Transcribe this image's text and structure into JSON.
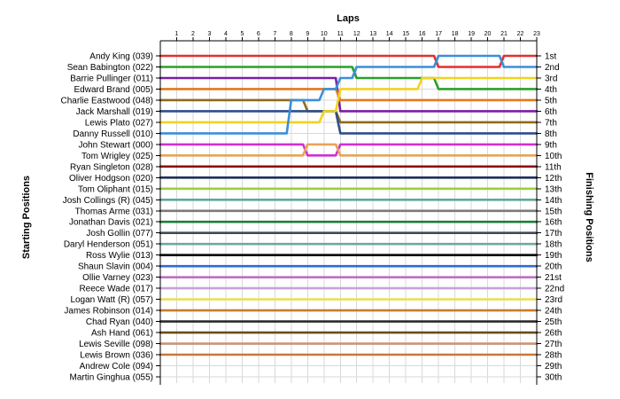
{
  "chart_data": {
    "type": "line",
    "title": "",
    "xlabel": "Laps",
    "ylabel_left": "Starting Positions",
    "ylabel_right": "Finishing Positions",
    "x": [
      0,
      1,
      2,
      3,
      4,
      5,
      6,
      7,
      8,
      9,
      10,
      11,
      12,
      13,
      14,
      15,
      16,
      17,
      18,
      19,
      20,
      21,
      22,
      23
    ],
    "x_tick_labels": [
      "1",
      "2",
      "3",
      "4",
      "5",
      "6",
      "7",
      "8",
      "9",
      "10",
      "11",
      "12",
      "13",
      "14",
      "15",
      "16",
      "17",
      "18",
      "19",
      "20",
      "21",
      "22",
      "23"
    ],
    "ylim": [
      1,
      30
    ],
    "y_inverted": true,
    "grid": true,
    "start_labels": [
      "Andy King (039)",
      "Sean Babington (022)",
      "Barrie Pullinger (011)",
      "Edward Brand (005)",
      "Charlie Eastwood (048)",
      "Jack Marshall (019)",
      "Lewis Plato (027)",
      "Danny Russell (010)",
      "John Stewart (000)",
      "Tom Wrigley (025)",
      "Ryan Singleton (028)",
      "Oliver Hodgson (020)",
      "Tom Oliphant (015)",
      "Josh Collings (R) (045)",
      "Thomas Arme (031)",
      "Jonathan Davis (021)",
      "Josh Gollin (077)",
      "Daryl Henderson (051)",
      "Ross Wylie (013)",
      "Shaun Slavin (004)",
      "Ollie Varney (023)",
      "Reece Wade (017)",
      "Logan Watt (R) (057)",
      "James Robinson (014)",
      "Chad Ryan (040)",
      "Ash Hand (061)",
      "Lewis Seville (098)",
      "Lewis Brown (036)",
      "Andrew Cole (094)",
      "Martin Ginghua (055)"
    ],
    "finish_labels": [
      "1st",
      "2nd",
      "3rd",
      "4th",
      "5th",
      "6th",
      "7th",
      "8th",
      "9th",
      "10th",
      "11th",
      "12th",
      "13th",
      "14th",
      "15th",
      "16th",
      "17th",
      "18th",
      "19th",
      "20th",
      "21st",
      "22nd",
      "23rd",
      "24th",
      "25th",
      "26th",
      "27th",
      "28th",
      "29th",
      "30th"
    ],
    "series": [
      {
        "color": "#e03030",
        "values": [
          1,
          1,
          1,
          1,
          1,
          1,
          1,
          1,
          1,
          1,
          1,
          1,
          1,
          1,
          1,
          1,
          1,
          2,
          2,
          2,
          2,
          1,
          1,
          1
        ]
      },
      {
        "color": "#2aa02a",
        "values": [
          2,
          2,
          2,
          2,
          2,
          2,
          2,
          2,
          2,
          2,
          2,
          2,
          3,
          3,
          3,
          3,
          3,
          4,
          4,
          4,
          4,
          4,
          4,
          4
        ]
      },
      {
        "color": "#7a1fa2",
        "values": [
          3,
          3,
          3,
          3,
          3,
          3,
          3,
          3,
          3,
          3,
          3,
          6,
          6,
          6,
          6,
          6,
          6,
          6,
          6,
          6,
          6,
          6,
          6,
          6
        ]
      },
      {
        "color": "#e07a1f",
        "values": [
          4,
          4,
          4,
          4,
          4,
          4,
          4,
          4,
          4,
          4,
          4,
          5,
          5,
          5,
          5,
          5,
          5,
          5,
          5,
          5,
          5,
          5,
          5,
          5
        ]
      },
      {
        "color": "#8e6b1a",
        "values": [
          5,
          5,
          5,
          5,
          5,
          5,
          5,
          5,
          5,
          6,
          6,
          7,
          7,
          7,
          7,
          7,
          7,
          7,
          7,
          7,
          7,
          7,
          7,
          7
        ]
      },
      {
        "color": "#2d4f8c",
        "values": [
          6,
          6,
          6,
          6,
          6,
          6,
          6,
          6,
          6,
          6,
          6,
          8,
          8,
          8,
          8,
          8,
          8,
          8,
          8,
          8,
          8,
          8,
          8,
          8
        ]
      },
      {
        "color": "#f2d21f",
        "values": [
          7,
          7,
          7,
          7,
          7,
          7,
          7,
          7,
          7,
          7,
          6,
          4,
          4,
          4,
          4,
          4,
          3,
          3,
          3,
          3,
          3,
          3,
          3,
          3
        ]
      },
      {
        "color": "#3b8fd9",
        "values": [
          8,
          8,
          8,
          8,
          8,
          8,
          8,
          8,
          5,
          5,
          4,
          3,
          2,
          2,
          2,
          2,
          2,
          1,
          1,
          1,
          1,
          2,
          2,
          2
        ]
      },
      {
        "color": "#d030d0",
        "values": [
          9,
          9,
          9,
          9,
          9,
          9,
          9,
          9,
          9,
          10,
          10,
          9,
          9,
          9,
          9,
          9,
          9,
          9,
          9,
          9,
          9,
          9,
          9,
          9
        ]
      },
      {
        "color": "#e6a35a",
        "values": [
          10,
          10,
          10,
          10,
          10,
          10,
          10,
          10,
          10,
          9,
          9,
          10,
          10,
          10,
          10,
          10,
          10,
          10,
          10,
          10,
          10,
          10,
          10,
          10
        ]
      },
      {
        "color": "#8b1010",
        "values": [
          11,
          11,
          11,
          11,
          11,
          11,
          11,
          11,
          11,
          11,
          11,
          11,
          11,
          11,
          11,
          11,
          11,
          11,
          11,
          11,
          11,
          11,
          11,
          11
        ]
      },
      {
        "color": "#1f2f5c",
        "values": [
          12,
          12,
          12,
          12,
          12,
          12,
          12,
          12,
          12,
          12,
          12,
          12,
          12,
          12,
          12,
          12,
          12,
          12,
          12,
          12,
          12,
          12,
          12,
          12
        ]
      },
      {
        "color": "#98d23a",
        "values": [
          13,
          13,
          13,
          13,
          13,
          13,
          13,
          13,
          13,
          13,
          13,
          13,
          13,
          13,
          13,
          13,
          13,
          13,
          13,
          13,
          13,
          13,
          13,
          13
        ]
      },
      {
        "color": "#5fa89a",
        "values": [
          14,
          14,
          14,
          14,
          14,
          14,
          14,
          14,
          14,
          14,
          14,
          14,
          14,
          14,
          14,
          14,
          14,
          14,
          14,
          14,
          14,
          14,
          14,
          14
        ]
      },
      {
        "color": "#7a7a7a",
        "values": [
          15,
          15,
          15,
          15,
          15,
          15,
          15,
          15,
          15,
          15,
          15,
          15,
          15,
          15,
          15,
          15,
          15,
          15,
          15,
          15,
          15,
          15,
          15,
          15
        ]
      },
      {
        "color": "#1a7f3a",
        "values": [
          16,
          16,
          16,
          16,
          16,
          16,
          16,
          16,
          16,
          16,
          16,
          16,
          16,
          16,
          16,
          16,
          16,
          16,
          16,
          16,
          16,
          16,
          16,
          16
        ]
      },
      {
        "color": "#3e4a5a",
        "values": [
          17,
          17,
          17,
          17,
          17,
          17,
          17,
          17,
          17,
          17,
          17,
          17,
          17,
          17,
          17,
          17,
          17,
          17,
          17,
          17,
          17,
          17,
          17,
          17
        ]
      },
      {
        "color": "#6fa8a0",
        "values": [
          18,
          18,
          18,
          18,
          18,
          18,
          18,
          18,
          18,
          18,
          18,
          18,
          18,
          18,
          18,
          18,
          18,
          18,
          18,
          18,
          18,
          18,
          18,
          18
        ]
      },
      {
        "color": "#000000",
        "values": [
          19,
          19,
          19,
          19,
          19,
          19,
          19,
          19,
          19,
          19,
          19,
          19,
          19,
          19,
          19,
          19,
          19,
          19,
          19,
          19,
          19,
          19,
          19,
          19
        ]
      },
      {
        "color": "#2e6bd1",
        "values": [
          20,
          20,
          20,
          20,
          20,
          20,
          20,
          20,
          20,
          20,
          20,
          20,
          20,
          20,
          20,
          20,
          20,
          20,
          20,
          20,
          20,
          20,
          20,
          20
        ]
      },
      {
        "color": "#c06fc0",
        "values": [
          21,
          21,
          21,
          21,
          21,
          21,
          21,
          21,
          21,
          21,
          21,
          21,
          21,
          21,
          21,
          21,
          21,
          21,
          21,
          21,
          21,
          21,
          21,
          21
        ]
      },
      {
        "color": "#c9a0d8",
        "values": [
          22,
          22,
          22,
          22,
          22,
          22,
          22,
          22,
          22,
          22,
          22,
          22,
          22,
          22,
          22,
          22,
          22,
          22,
          22,
          22,
          22,
          22,
          22,
          22
        ]
      },
      {
        "color": "#e8e05a",
        "values": [
          23,
          23,
          23,
          23,
          23,
          23,
          23,
          23,
          23,
          23,
          23,
          23,
          23,
          23,
          23,
          23,
          23,
          23,
          23,
          23,
          23,
          23,
          23,
          23
        ]
      },
      {
        "color": "#c87c2a",
        "values": [
          24,
          24,
          24,
          24,
          24,
          24,
          24,
          24,
          24,
          24,
          24,
          24,
          24,
          24,
          24,
          24,
          24,
          24,
          24,
          24,
          24,
          24,
          24,
          24
        ]
      },
      {
        "color": "#2b2b2b",
        "values": [
          25,
          25,
          25,
          25,
          25,
          25,
          25,
          25,
          25,
          25,
          25,
          25,
          25,
          25,
          25,
          25,
          25,
          25,
          25,
          25,
          25,
          25,
          25,
          25
        ]
      },
      {
        "color": "#6b4a1a",
        "values": [
          26,
          26,
          26,
          26,
          26,
          26,
          26,
          26,
          26,
          26,
          26,
          26,
          26,
          26,
          26,
          26,
          26,
          26,
          26,
          26,
          26,
          26,
          26,
          26
        ]
      },
      {
        "color": "#c8947a",
        "values": [
          27,
          27,
          27,
          27,
          27,
          27,
          27,
          27,
          27,
          27,
          27,
          27,
          27,
          27,
          27,
          27,
          27,
          27,
          27,
          27,
          27,
          27,
          27,
          27
        ]
      },
      {
        "color": "#c8783a",
        "values": [
          28,
          28,
          28,
          28,
          28,
          28,
          28,
          28,
          28,
          28,
          28,
          28,
          28,
          28,
          28,
          28,
          28,
          28,
          28,
          28,
          28,
          28,
          28,
          28
        ]
      }
    ]
  }
}
